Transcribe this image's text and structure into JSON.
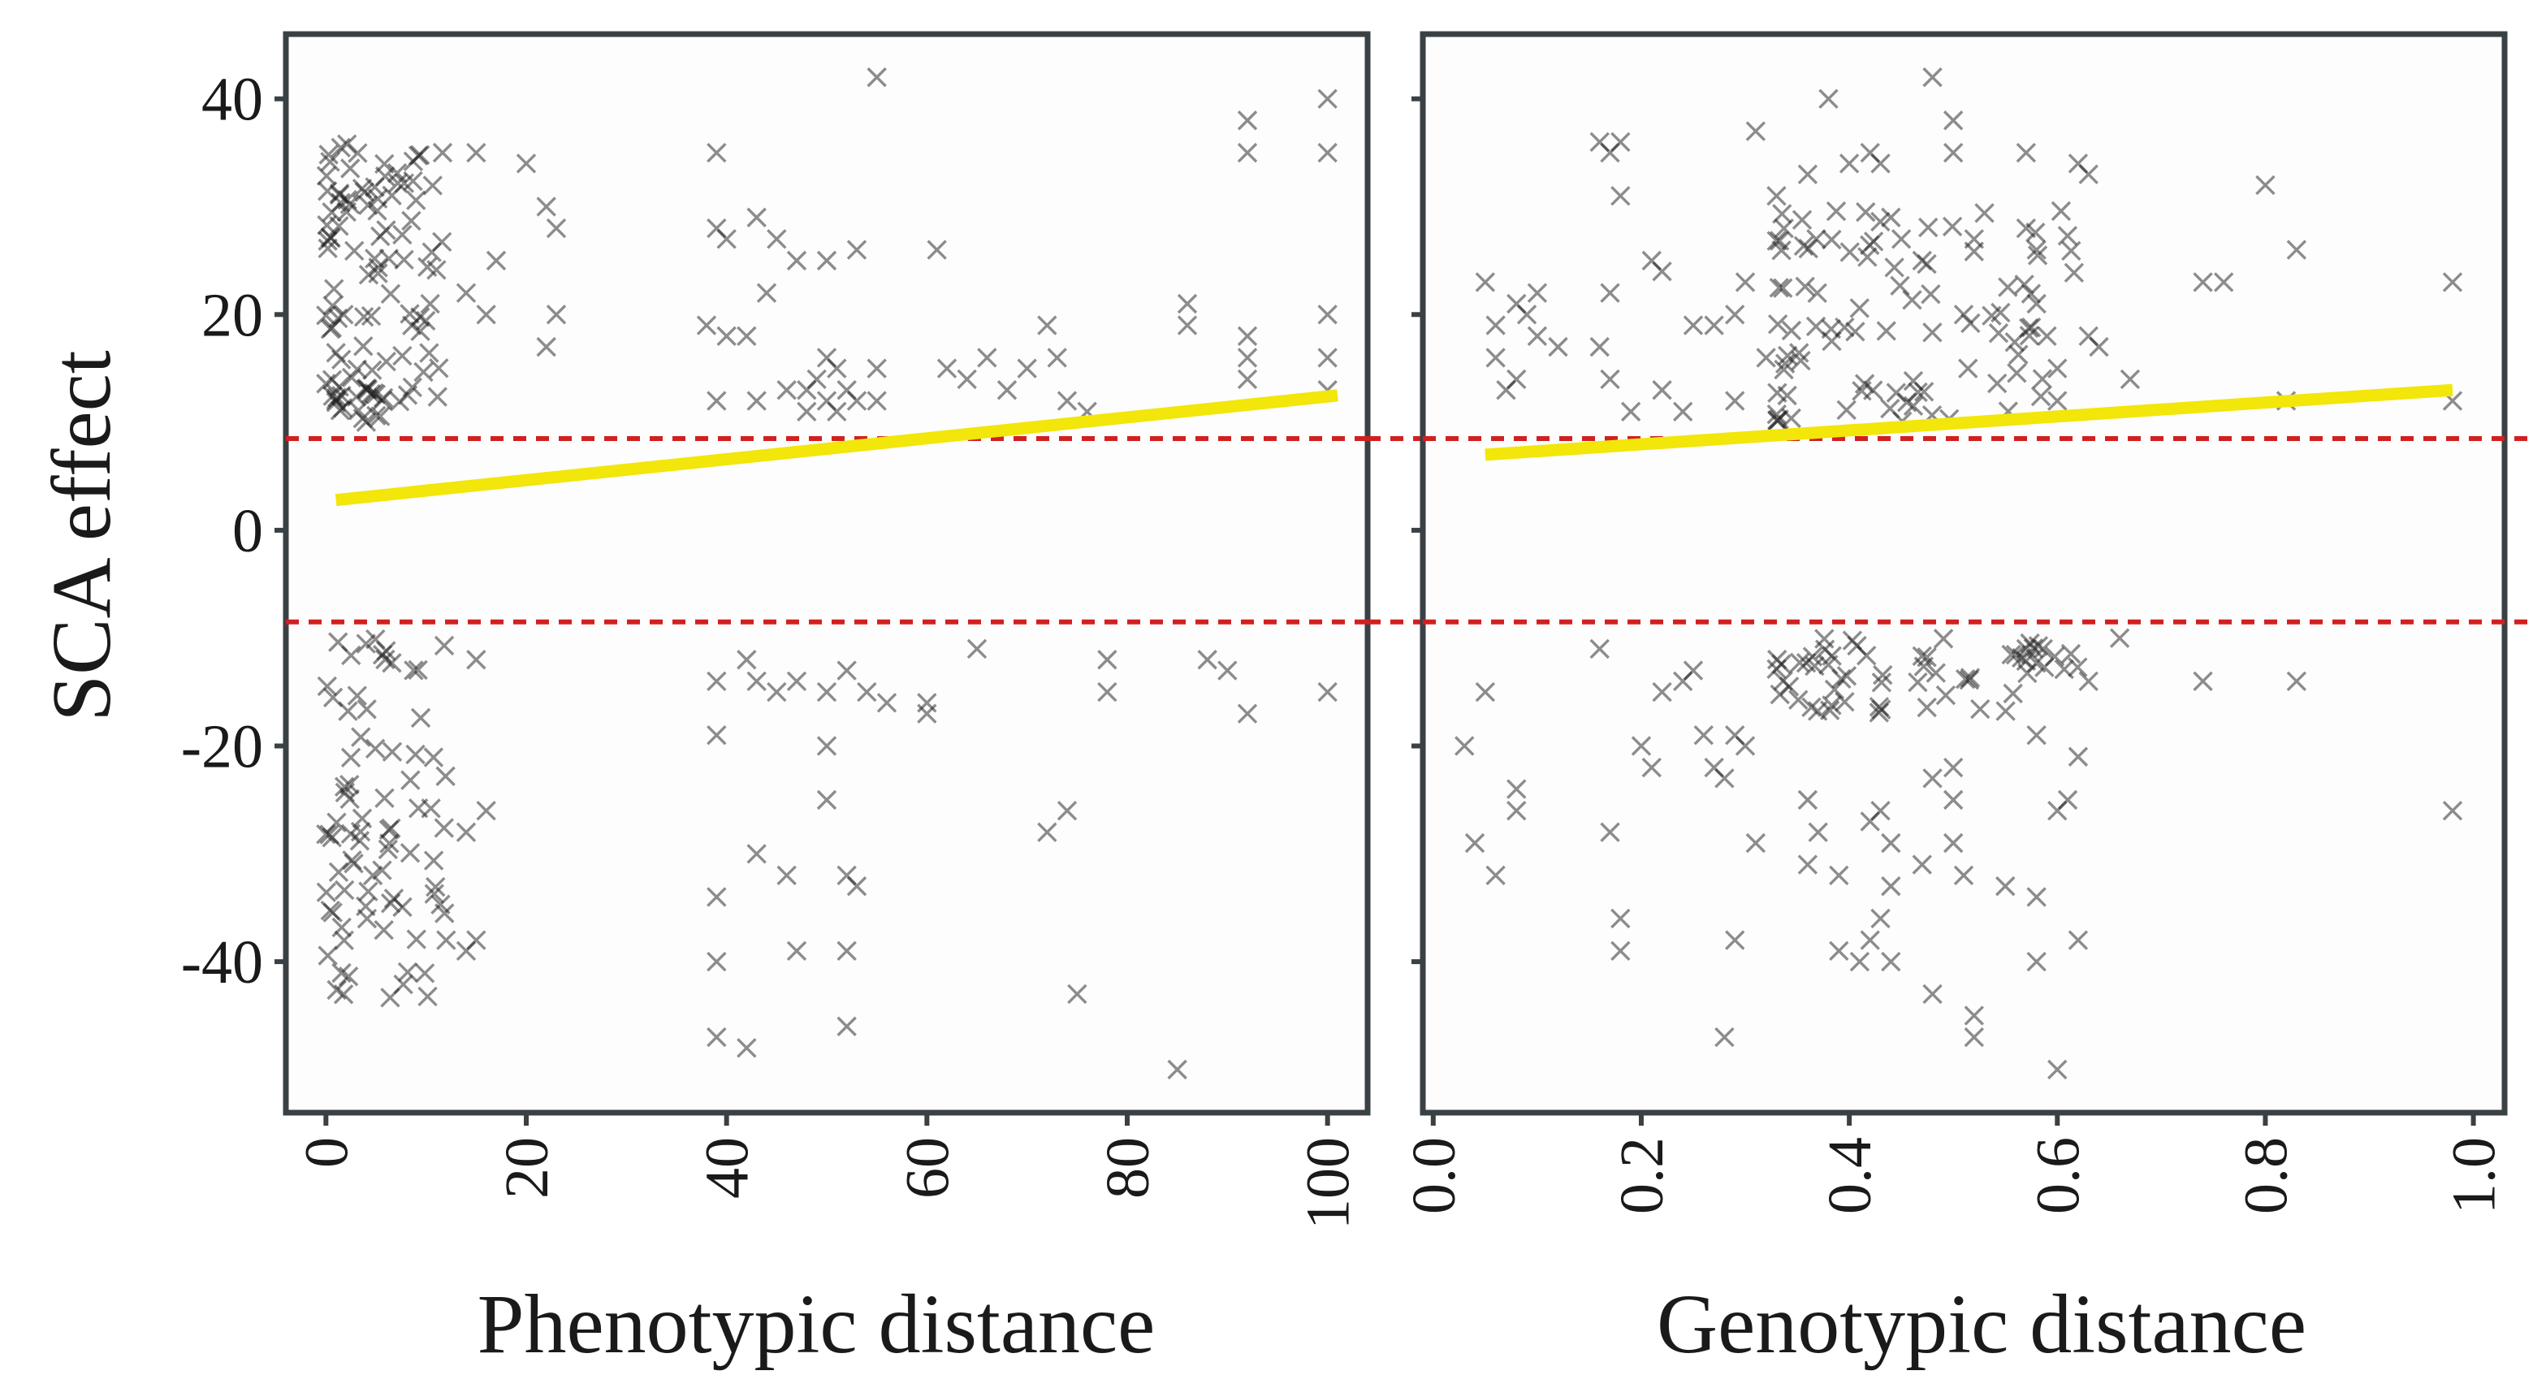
{
  "chart_data": {
    "type": "scatter",
    "ylabel": "SCA effect",
    "ylim": [
      -54,
      46
    ],
    "yticks": [
      40,
      20,
      0,
      -20,
      -40
    ],
    "ytick_labels": [
      "40",
      "20",
      "0",
      "-20",
      "-40"
    ],
    "reference_lines": [
      8.5,
      -8.5
    ],
    "colors": {
      "points": "#1c1c1c",
      "fit_line": "#f2e60a",
      "reference_line": "#d22020",
      "frame": "#3a4145"
    },
    "panels": [
      {
        "xlabel": "Phenotypic distance",
        "xlim": [
          -4,
          104
        ],
        "xticks": [
          0,
          20,
          40,
          60,
          80,
          100
        ],
        "xtick_labels": [
          "0",
          "20",
          "40",
          "60",
          "80",
          "100"
        ],
        "fit_line": {
          "x": [
            1,
            101
          ],
          "y": [
            2.8,
            12.5
          ]
        },
        "dense_clusters": [
          {
            "x": [
              0,
              12
            ],
            "y": [
              10,
              36
            ],
            "n": 110
          },
          {
            "x": [
              0,
              12
            ],
            "y": [
              -44,
              -10
            ],
            "n": 80
          }
        ],
        "points": [
          [
            15,
            35
          ],
          [
            20,
            34
          ],
          [
            22,
            30
          ],
          [
            23,
            28
          ],
          [
            17,
            25
          ],
          [
            14,
            22
          ],
          [
            16,
            20
          ],
          [
            23,
            20
          ],
          [
            22,
            17
          ],
          [
            39,
            35
          ],
          [
            39,
            28
          ],
          [
            40,
            27
          ],
          [
            43,
            29
          ],
          [
            45,
            27
          ],
          [
            47,
            25
          ],
          [
            50,
            25
          ],
          [
            53,
            26
          ],
          [
            44,
            22
          ],
          [
            42,
            18
          ],
          [
            38,
            19
          ],
          [
            40,
            18
          ],
          [
            39,
            12
          ],
          [
            43,
            12
          ],
          [
            46,
            13
          ],
          [
            48,
            11
          ],
          [
            50,
            16
          ],
          [
            51,
            15
          ],
          [
            49,
            14
          ],
          [
            52,
            13
          ],
          [
            50,
            12
          ],
          [
            51,
            11
          ],
          [
            53,
            12
          ],
          [
            48,
            13
          ],
          [
            55,
            15
          ],
          [
            55,
            12
          ],
          [
            55,
            42
          ],
          [
            61,
            26
          ],
          [
            62,
            15
          ],
          [
            64,
            14
          ],
          [
            66,
            16
          ],
          [
            68,
            13
          ],
          [
            70,
            15
          ],
          [
            72,
            19
          ],
          [
            73,
            16
          ],
          [
            74,
            12
          ],
          [
            76,
            11
          ],
          [
            86,
            19
          ],
          [
            86,
            21
          ],
          [
            92,
            18
          ],
          [
            92,
            16
          ],
          [
            100,
            20
          ],
          [
            100,
            16
          ],
          [
            100,
            13
          ],
          [
            92,
            38
          ],
          [
            92,
            35
          ],
          [
            100,
            40
          ],
          [
            100,
            35
          ],
          [
            92,
            14
          ],
          [
            15,
            -12
          ],
          [
            16,
            -26
          ],
          [
            15,
            -38
          ],
          [
            14,
            -39
          ],
          [
            12,
            -38
          ],
          [
            14,
            -28
          ],
          [
            39,
            -14
          ],
          [
            42,
            -12
          ],
          [
            43,
            -14
          ],
          [
            45,
            -15
          ],
          [
            47,
            -14
          ],
          [
            50,
            -15
          ],
          [
            52,
            -13
          ],
          [
            54,
            -15
          ],
          [
            56,
            -16
          ],
          [
            39,
            -19
          ],
          [
            43,
            -30
          ],
          [
            46,
            -32
          ],
          [
            50,
            -20
          ],
          [
            50,
            -25
          ],
          [
            52,
            -32
          ],
          [
            53,
            -33
          ],
          [
            39,
            -34
          ],
          [
            39,
            -40
          ],
          [
            39,
            -47
          ],
          [
            42,
            -48
          ],
          [
            47,
            -39
          ],
          [
            52,
            -39
          ],
          [
            52,
            -46
          ],
          [
            60,
            -16
          ],
          [
            60,
            -17
          ],
          [
            65,
            -11
          ],
          [
            72,
            -28
          ],
          [
            74,
            -26
          ],
          [
            75,
            -43
          ],
          [
            78,
            -15
          ],
          [
            78,
            -12
          ],
          [
            85,
            -50
          ],
          [
            88,
            -12
          ],
          [
            90,
            -13
          ],
          [
            92,
            -17
          ],
          [
            100,
            -15
          ]
        ]
      },
      {
        "xlabel": "Genotypic distance",
        "xlim": [
          -0.01,
          1.03
        ],
        "xticks": [
          0.0,
          0.2,
          0.4,
          0.6,
          0.8,
          1.0
        ],
        "xtick_labels": [
          "0.0",
          "0.2",
          "0.4",
          "0.6",
          "0.8",
          "1.0"
        ],
        "fit_line": {
          "x": [
            0.05,
            0.98
          ],
          "y": [
            7.0,
            13.0
          ]
        },
        "dense_clusters": [
          {
            "x": [
              0.33,
              0.62
            ],
            "y": [
              10,
              30
            ],
            "n": 90
          },
          {
            "x": [
              0.33,
              0.62
            ],
            "y": [
              -17,
              -10
            ],
            "n": 60
          }
        ],
        "points": [
          [
            0.05,
            23
          ],
          [
            0.06,
            19
          ],
          [
            0.06,
            16
          ],
          [
            0.07,
            13
          ],
          [
            0.08,
            21
          ],
          [
            0.09,
            20
          ],
          [
            0.1,
            22
          ],
          [
            0.1,
            18
          ],
          [
            0.12,
            17
          ],
          [
            0.08,
            14
          ],
          [
            0.16,
            36
          ],
          [
            0.17,
            35
          ],
          [
            0.18,
            36
          ],
          [
            0.18,
            31
          ],
          [
            0.17,
            22
          ],
          [
            0.16,
            17
          ],
          [
            0.17,
            14
          ],
          [
            0.19,
            11
          ],
          [
            0.21,
            25
          ],
          [
            0.22,
            24
          ],
          [
            0.22,
            13
          ],
          [
            0.24,
            11
          ],
          [
            0.25,
            19
          ],
          [
            0.27,
            19
          ],
          [
            0.29,
            20
          ],
          [
            0.29,
            12
          ],
          [
            0.3,
            23
          ],
          [
            0.32,
            16
          ],
          [
            0.31,
            37
          ],
          [
            0.33,
            31
          ],
          [
            0.36,
            33
          ],
          [
            0.38,
            40
          ],
          [
            0.4,
            34
          ],
          [
            0.42,
            35
          ],
          [
            0.43,
            34
          ],
          [
            0.44,
            29
          ],
          [
            0.45,
            27
          ],
          [
            0.47,
            25
          ],
          [
            0.48,
            42
          ],
          [
            0.5,
            38
          ],
          [
            0.5,
            35
          ],
          [
            0.52,
            27
          ],
          [
            0.51,
            20
          ],
          [
            0.57,
            35
          ],
          [
            0.57,
            28
          ],
          [
            0.58,
            26
          ],
          [
            0.58,
            21
          ],
          [
            0.59,
            18
          ],
          [
            0.6,
            15
          ],
          [
            0.6,
            12
          ],
          [
            0.62,
            34
          ],
          [
            0.63,
            33
          ],
          [
            0.63,
            18
          ],
          [
            0.64,
            17
          ],
          [
            0.67,
            14
          ],
          [
            0.74,
            23
          ],
          [
            0.76,
            23
          ],
          [
            0.8,
            32
          ],
          [
            0.83,
            26
          ],
          [
            0.82,
            12
          ],
          [
            0.98,
            23
          ],
          [
            0.98,
            12
          ],
          [
            0.03,
            -20
          ],
          [
            0.05,
            -15
          ],
          [
            0.04,
            -29
          ],
          [
            0.06,
            -32
          ],
          [
            0.08,
            -24
          ],
          [
            0.08,
            -26
          ],
          [
            0.16,
            -11
          ],
          [
            0.17,
            -28
          ],
          [
            0.18,
            -36
          ],
          [
            0.18,
            -39
          ],
          [
            0.2,
            -20
          ],
          [
            0.21,
            -22
          ],
          [
            0.22,
            -15
          ],
          [
            0.24,
            -14
          ],
          [
            0.25,
            -13
          ],
          [
            0.26,
            -19
          ],
          [
            0.27,
            -22
          ],
          [
            0.28,
            -23
          ],
          [
            0.29,
            -19
          ],
          [
            0.3,
            -20
          ],
          [
            0.31,
            -29
          ],
          [
            0.29,
            -38
          ],
          [
            0.28,
            -47
          ],
          [
            0.36,
            -25
          ],
          [
            0.37,
            -28
          ],
          [
            0.36,
            -31
          ],
          [
            0.39,
            -32
          ],
          [
            0.39,
            -39
          ],
          [
            0.41,
            -40
          ],
          [
            0.42,
            -27
          ],
          [
            0.43,
            -26
          ],
          [
            0.44,
            -29
          ],
          [
            0.44,
            -33
          ],
          [
            0.43,
            -36
          ],
          [
            0.42,
            -38
          ],
          [
            0.44,
            -40
          ],
          [
            0.47,
            -31
          ],
          [
            0.48,
            -23
          ],
          [
            0.48,
            -43
          ],
          [
            0.5,
            -22
          ],
          [
            0.5,
            -25
          ],
          [
            0.5,
            -29
          ],
          [
            0.51,
            -32
          ],
          [
            0.52,
            -45
          ],
          [
            0.52,
            -47
          ],
          [
            0.55,
            -33
          ],
          [
            0.57,
            -11
          ],
          [
            0.58,
            -19
          ],
          [
            0.58,
            -34
          ],
          [
            0.58,
            -40
          ],
          [
            0.6,
            -26
          ],
          [
            0.6,
            -50
          ],
          [
            0.61,
            -25
          ],
          [
            0.62,
            -21
          ],
          [
            0.62,
            -38
          ],
          [
            0.63,
            -14
          ],
          [
            0.66,
            -10
          ],
          [
            0.74,
            -14
          ],
          [
            0.83,
            -14
          ],
          [
            0.98,
            -26
          ]
        ]
      }
    ]
  }
}
